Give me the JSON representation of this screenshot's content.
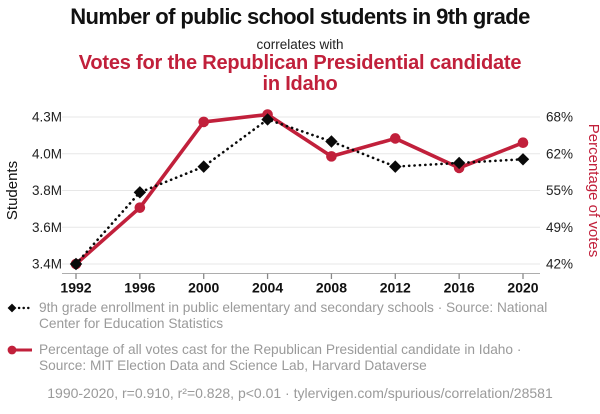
{
  "header": {
    "title_black": "Number of public school students in 9th grade",
    "connector": "correlates with",
    "title_red": "Votes for the Republican Presidential candidate in Idaho"
  },
  "colors": {
    "accent_red": "#c1203b",
    "series_black": "#0a0a0a",
    "legend_gray": "#9a9a9a",
    "gridline": "#e7e7e7",
    "axis_line": "#adadad",
    "axis_tick": "#888888"
  },
  "chart_data": {
    "type": "line",
    "x": [
      "1992",
      "1996",
      "2000",
      "2004",
      "2008",
      "2012",
      "2016",
      "2020"
    ],
    "left_axis": {
      "label": "Students",
      "tick_values": [
        3.4,
        3.6,
        3.8,
        4.0,
        4.3
      ],
      "tick_labels": [
        "3.4M",
        "3.6M",
        "3.8M",
        "4.0M",
        "4.3M"
      ]
    },
    "right_axis": {
      "label": "Percentage of votes",
      "tick_values": [
        42,
        49,
        55,
        62,
        68
      ],
      "tick_labels": [
        "42%",
        "49%",
        "55%",
        "62%",
        "68%"
      ]
    },
    "series": [
      {
        "name": "9th grade enrollment in public elementary and secondary schools",
        "axis": "left",
        "unit": "millions of students",
        "marker": "diamond",
        "line_style": "dotted",
        "values": [
          3.4,
          3.79,
          3.93,
          4.28,
          4.1,
          3.93,
          3.95,
          3.97
        ]
      },
      {
        "name": "Percentage of all votes cast for the Republican Presidential candidate in Idaho",
        "axis": "right",
        "unit": "percent",
        "marker": "circle",
        "line_style": "solid",
        "values": [
          42.0,
          52.2,
          67.2,
          68.4,
          61.5,
          64.5,
          59.3,
          63.8
        ]
      }
    ],
    "grid": "horizontal",
    "legend_position": "below"
  },
  "legend": {
    "entries": [
      {
        "marker": "black-diamond-dotted-line",
        "text": "9th grade enrollment in public elementary and secondary schools · Source: National Center for Education Statistics"
      },
      {
        "marker": "red-circle-solid-line",
        "text": "Percentage of all votes cast for the Republican Presidential candidate in Idaho · Source: MIT Election Data and Science Lab, Harvard Dataverse"
      }
    ]
  },
  "footer": {
    "text": "1990-2020, r=0.910, r²=0.828, p<0.01 · tylervigen.com/spurious/correlation/28581"
  }
}
